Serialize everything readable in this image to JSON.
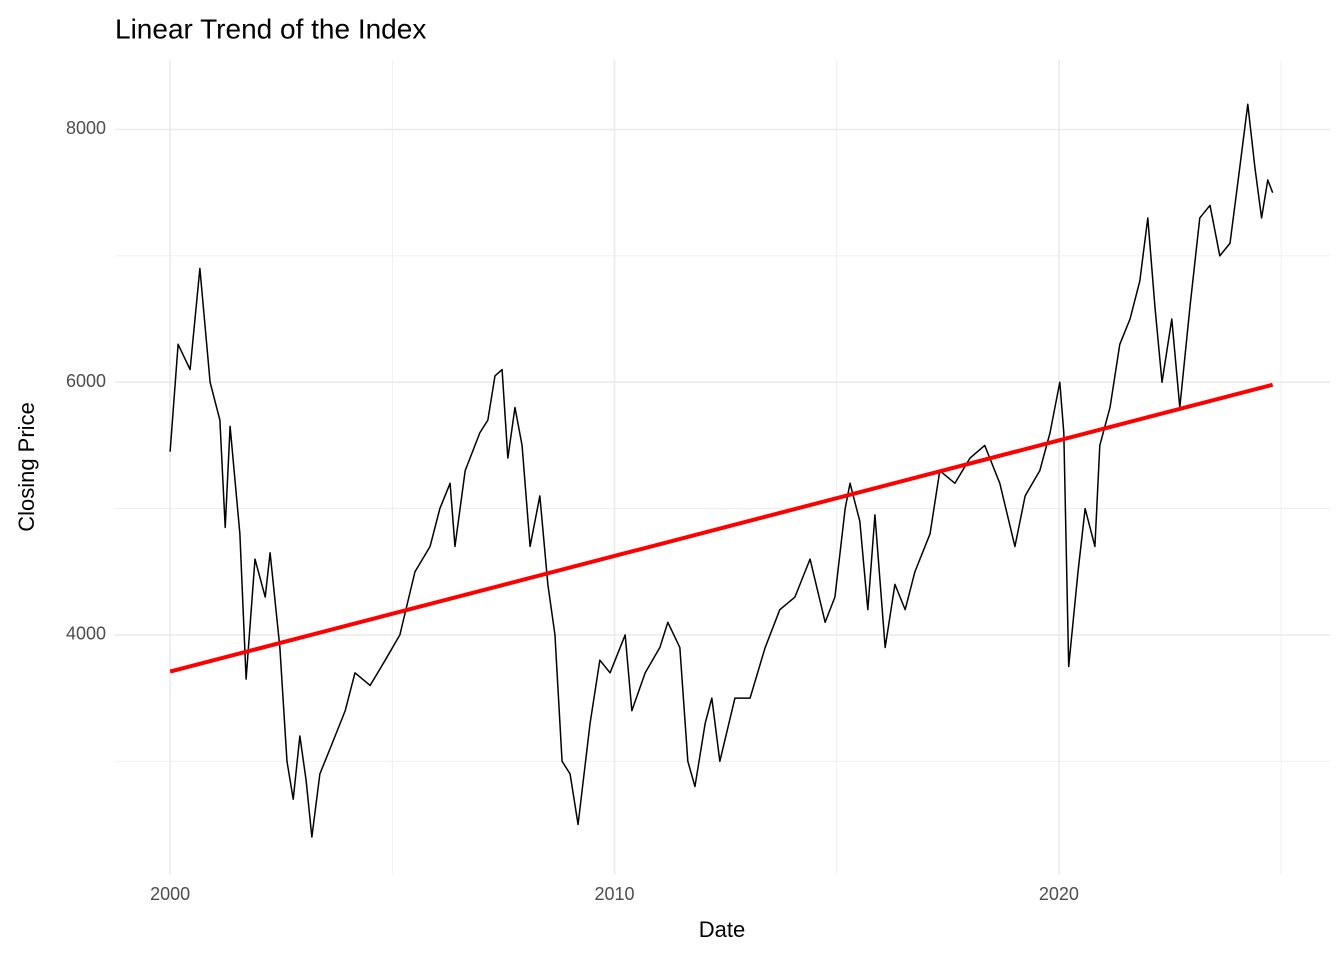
{
  "chart_data": {
    "type": "line",
    "title": "Linear Trend of the Index",
    "x_label": "Date",
    "y_label": "Closing Price",
    "xlim": [
      1998.76,
      2026.1
    ],
    "xticks": [
      2000,
      2010,
      2020
    ],
    "x_minor_ticks": [
      2005,
      2015,
      2025
    ],
    "ylim": [
      2100,
      8550
    ],
    "yticks": [
      4000,
      6000,
      8000
    ],
    "y_minor_ticks": [
      3000,
      5000,
      7000
    ],
    "grid": true,
    "series": [
      {
        "color": "#000000",
        "x": [
          2000.0,
          2000.18,
          2000.45,
          2000.67,
          2000.9,
          2001.12,
          2001.24,
          2001.35,
          2001.57,
          2001.71,
          2001.91,
          2002.14,
          2002.25,
          2002.47,
          2002.63,
          2002.77,
          2002.92,
          2003.06,
          2003.19,
          2003.37,
          2003.6,
          2003.94,
          2004.16,
          2004.5,
          2004.84,
          2005.17,
          2005.51,
          2005.85,
          2006.07,
          2006.3,
          2006.41,
          2006.64,
          2006.97,
          2007.15,
          2007.31,
          2007.47,
          2007.6,
          2007.76,
          2007.92,
          2008.1,
          2008.32,
          2008.5,
          2008.66,
          2008.82,
          2009.0,
          2009.18,
          2009.45,
          2009.67,
          2009.9,
          2010.24,
          2010.39,
          2010.69,
          2011.02,
          2011.2,
          2011.47,
          2011.65,
          2011.81,
          2012.04,
          2012.19,
          2012.37,
          2012.71,
          2013.05,
          2013.39,
          2013.72,
          2014.06,
          2014.4,
          2014.74,
          2014.96,
          2015.19,
          2015.3,
          2015.52,
          2015.7,
          2015.86,
          2016.09,
          2016.31,
          2016.54,
          2016.76,
          2017.1,
          2017.32,
          2017.66,
          2018.0,
          2018.33,
          2018.67,
          2019.01,
          2019.24,
          2019.57,
          2019.8,
          2020.02,
          2020.11,
          2020.22,
          2020.43,
          2020.59,
          2020.81,
          2020.92,
          2021.15,
          2021.37,
          2021.6,
          2021.82,
          2022.0,
          2022.16,
          2022.32,
          2022.54,
          2022.72,
          2022.95,
          2023.17,
          2023.4,
          2023.62,
          2023.85,
          2024.07,
          2024.25,
          2024.41,
          2024.56,
          2024.7,
          2024.81
        ],
        "values": [
          5450,
          6300,
          6100,
          6900,
          6000,
          5700,
          4850,
          5650,
          4800,
          3650,
          4600,
          4300,
          4650,
          3900,
          3000,
          2700,
          3200,
          2850,
          2400,
          2900,
          3100,
          3400,
          3700,
          3600,
          3800,
          4000,
          4500,
          4700,
          5000,
          5200,
          4700,
          5300,
          5600,
          5700,
          6050,
          6100,
          5400,
          5800,
          5500,
          4700,
          5100,
          4400,
          4000,
          3000,
          2900,
          2500,
          3300,
          3800,
          3700,
          4000,
          3400,
          3700,
          3900,
          4100,
          3900,
          3000,
          2800,
          3300,
          3500,
          3000,
          3500,
          3500,
          3900,
          4200,
          4300,
          4600,
          4100,
          4300,
          5000,
          5200,
          4900,
          4200,
          4950,
          3900,
          4400,
          4200,
          4500,
          4800,
          5300,
          5200,
          5400,
          5500,
          5200,
          4700,
          5100,
          5300,
          5600,
          6000,
          5600,
          3750,
          4500,
          5000,
          4700,
          5500,
          5800,
          6300,
          6500,
          6800,
          7300,
          6600,
          6000,
          6500,
          5800,
          6600,
          7300,
          7400,
          7000,
          7100,
          7700,
          8200,
          7700,
          7300,
          7600,
          7500
        ],
        "width": 1.5
      },
      {
        "color": "#ff0000",
        "x": [
          2000.0,
          2024.81
        ],
        "values": [
          3710,
          5980
        ],
        "width": 4
      }
    ]
  }
}
